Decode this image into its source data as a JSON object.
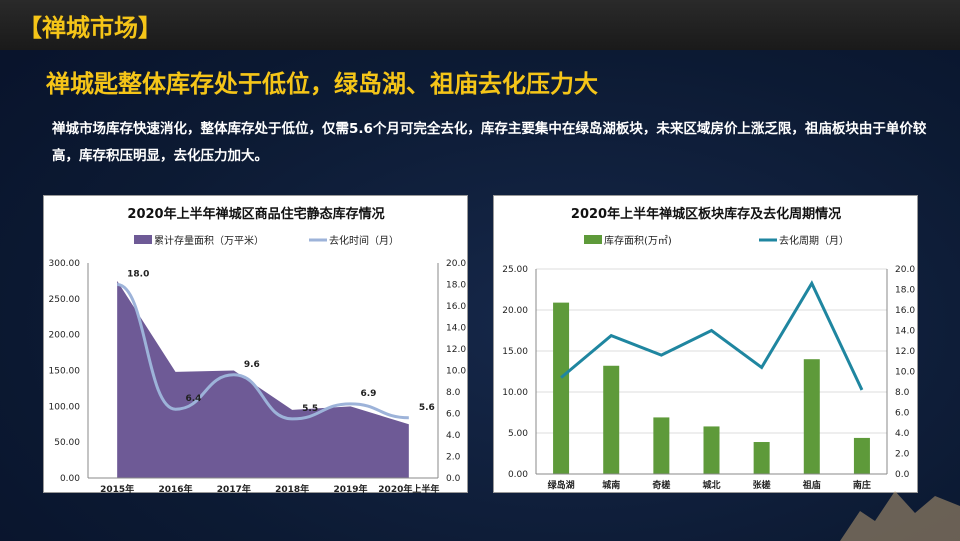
{
  "header": {
    "section_title": "【禅城市场】"
  },
  "headline": "禅城匙整体库存处于低位，绿岛湖、祖庙去化压力大",
  "paragraph": "禅城市场库存快速消化，整体库存处于低位，仅需5.6个月可完全去化，库存主要集中在绿岛湖板块，未来区域房价上涨乏限，祖庙板块由于单价较高，库存积压明显，去化压力加大。",
  "chart_data": [
    {
      "type": "area+line",
      "title": "2020年上半年禅城区商品住宅静态库存情况",
      "categories": [
        "2015年",
        "2016年",
        "2017年",
        "2018年",
        "2019年",
        "2020年上半年"
      ],
      "series": [
        {
          "name": "累计存量面积（万平米）",
          "type": "area",
          "axis": "left",
          "values": [
            275,
            148,
            150,
            95,
            100,
            75
          ],
          "color": "#6e5a96"
        },
        {
          "name": "去化时间（月）",
          "type": "line",
          "axis": "right",
          "values": [
            18.0,
            6.4,
            9.6,
            5.5,
            6.9,
            5.6
          ],
          "labels": [
            "18.0",
            "6.4",
            "9.6",
            "5.5",
            "6.9",
            "5.6"
          ],
          "color": "#9db3d9"
        }
      ],
      "ylim": [
        0,
        300
      ],
      "y2lim": [
        0,
        20
      ],
      "yticks": [
        "0.00",
        "50.00",
        "100.00",
        "150.00",
        "200.00",
        "250.00",
        "300.00"
      ],
      "y2ticks": [
        "0.0",
        "2.0",
        "4.0",
        "6.0",
        "8.0",
        "10.0",
        "12.0",
        "14.0",
        "16.0",
        "18.0",
        "20.0"
      ],
      "legend": "top",
      "grid": false
    },
    {
      "type": "bar+line",
      "title": "2020年上半年禅城区板块库存及去化周期情况",
      "categories": [
        "绿岛湖",
        "城南",
        "奇槎",
        "城北",
        "张槎",
        "祖庙",
        "南庄"
      ],
      "series": [
        {
          "name": "库存面积(万㎡)",
          "type": "bar",
          "axis": "left",
          "values": [
            20.9,
            13.2,
            6.9,
            5.8,
            3.9,
            14.0,
            4.4
          ],
          "color": "#5e9a3a"
        },
        {
          "name": "去化周期（月）",
          "type": "line",
          "axis": "right",
          "values": [
            9.4,
            13.5,
            11.6,
            14.0,
            10.4,
            18.6,
            8.2
          ],
          "color": "#1f86a0"
        }
      ],
      "ylim": [
        0,
        25
      ],
      "y2lim": [
        0,
        20
      ],
      "yticks": [
        "0.00",
        "5.00",
        "10.00",
        "15.00",
        "20.00",
        "25.00"
      ],
      "y2ticks": [
        "0.0",
        "2.0",
        "4.0",
        "6.0",
        "8.0",
        "10.0",
        "12.0",
        "14.0",
        "16.0",
        "18.0",
        "20.0"
      ],
      "legend": "top",
      "grid": true
    }
  ]
}
